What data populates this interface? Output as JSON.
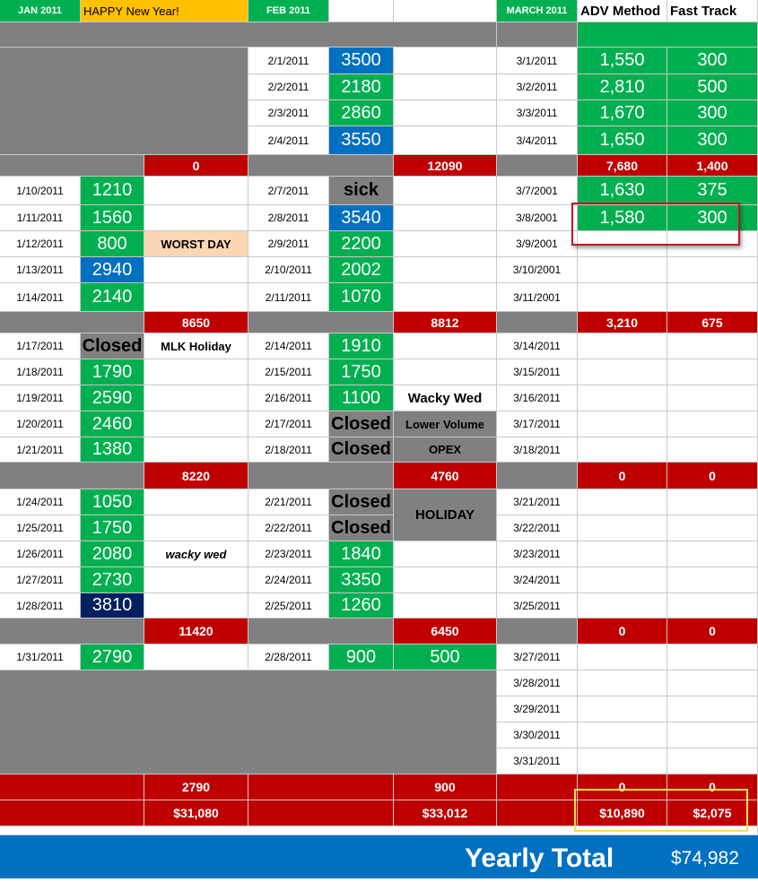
{
  "header": {
    "jan_title": "JAN 2011",
    "jan_note": "HAPPY New Year!",
    "feb_title": "FEB 2011",
    "march_title": "MARCH 2011",
    "adv_method": "ADV Method",
    "fast_track": "Fast Track"
  },
  "jan": {
    "days": [
      {
        "date": "1/10/2011",
        "value": "1210",
        "note": ""
      },
      {
        "date": "1/11/2011",
        "value": "1560",
        "note": ""
      },
      {
        "date": "1/12/2011",
        "value": "800",
        "note": "WORST DAY"
      },
      {
        "date": "1/13/2011",
        "value": "2940",
        "note": ""
      },
      {
        "date": "1/14/2011",
        "value": "2140",
        "note": ""
      },
      {
        "date": "1/17/2011",
        "value": "Closed",
        "note": "MLK Holiday"
      },
      {
        "date": "1/18/2011",
        "value": "1790",
        "note": ""
      },
      {
        "date": "1/19/2011",
        "value": "2590",
        "note": ""
      },
      {
        "date": "1/20/2011",
        "value": "2460",
        "note": ""
      },
      {
        "date": "1/21/2011",
        "value": "1380",
        "note": ""
      },
      {
        "date": "1/24/2011",
        "value": "1050",
        "note": ""
      },
      {
        "date": "1/25/2011",
        "value": "1750",
        "note": ""
      },
      {
        "date": "1/26/2011",
        "value": "2080",
        "note": "wacky wed"
      },
      {
        "date": "1/27/2011",
        "value": "2730",
        "note": ""
      },
      {
        "date": "1/28/2011",
        "value": "3810",
        "note": ""
      },
      {
        "date": "1/31/2011",
        "value": "2790",
        "note": ""
      }
    ],
    "weekly_totals": [
      "0",
      "8650",
      "8220",
      "11420",
      "2790"
    ],
    "month_total": "$31,080"
  },
  "feb": {
    "days": [
      {
        "date": "2/1/2011",
        "value": "3500",
        "note": ""
      },
      {
        "date": "2/2/2011",
        "value": "2180",
        "note": ""
      },
      {
        "date": "2/3/2011",
        "value": "2860",
        "note": ""
      },
      {
        "date": "2/4/2011",
        "value": "3550",
        "note": ""
      },
      {
        "date": "2/7/2011",
        "value": "sick",
        "note": ""
      },
      {
        "date": "2/8/2011",
        "value": "3540",
        "note": ""
      },
      {
        "date": "2/9/2011",
        "value": "2200",
        "note": ""
      },
      {
        "date": "2/10/2011",
        "value": "2002",
        "note": ""
      },
      {
        "date": "2/11/2011",
        "value": "1070",
        "note": ""
      },
      {
        "date": "2/14/2011",
        "value": "1910",
        "note": ""
      },
      {
        "date": "2/15/2011",
        "value": "1750",
        "note": ""
      },
      {
        "date": "2/16/2011",
        "value": "1100",
        "note": "Wacky Wed"
      },
      {
        "date": "2/17/2011",
        "value": "Closed",
        "note": "Lower Volume"
      },
      {
        "date": "2/18/2011",
        "value": "Closed",
        "note": "OPEX"
      },
      {
        "date": "2/21/2011",
        "value": "Closed",
        "note": "HOLIDAY"
      },
      {
        "date": "2/22/2011",
        "value": "Closed",
        "note": ""
      },
      {
        "date": "2/23/2011",
        "value": "1840",
        "note": ""
      },
      {
        "date": "2/24/2011",
        "value": "3350",
        "note": ""
      },
      {
        "date": "2/25/2011",
        "value": "1260",
        "note": ""
      },
      {
        "date": "2/28/2011",
        "value": "900",
        "note": "500"
      }
    ],
    "weekly_totals": [
      "12090",
      "8812",
      "4760",
      "6450",
      "900"
    ],
    "month_total": "$33,012"
  },
  "march": {
    "days": [
      {
        "date": "3/1/2011",
        "adv": "1,550",
        "fast": "300"
      },
      {
        "date": "3/2/2011",
        "adv": "2,810",
        "fast": "500"
      },
      {
        "date": "3/3/2011",
        "adv": "1,670",
        "fast": "300"
      },
      {
        "date": "3/4/2011",
        "adv": "1,650",
        "fast": "300"
      },
      {
        "date": "3/7/2001",
        "adv": "1,630",
        "fast": "375"
      },
      {
        "date": "3/8/2001",
        "adv": "1,580",
        "fast": "300"
      },
      {
        "date": "3/9/2001",
        "adv": "",
        "fast": ""
      },
      {
        "date": "3/10/2001",
        "adv": "",
        "fast": ""
      },
      {
        "date": "3/11/2001",
        "adv": "",
        "fast": ""
      },
      {
        "date": "3/14/2011",
        "adv": "",
        "fast": ""
      },
      {
        "date": "3/15/2011",
        "adv": "",
        "fast": ""
      },
      {
        "date": "3/16/2011",
        "adv": "",
        "fast": ""
      },
      {
        "date": "3/17/2011",
        "adv": "",
        "fast": ""
      },
      {
        "date": "3/18/2011",
        "adv": "",
        "fast": ""
      },
      {
        "date": "3/21/2011",
        "adv": "",
        "fast": ""
      },
      {
        "date": "3/22/2011",
        "adv": "",
        "fast": ""
      },
      {
        "date": "3/23/2011",
        "adv": "",
        "fast": ""
      },
      {
        "date": "3/24/2011",
        "adv": "",
        "fast": ""
      },
      {
        "date": "3/25/2011",
        "adv": "",
        "fast": ""
      },
      {
        "date": "3/27/2011",
        "adv": "",
        "fast": ""
      },
      {
        "date": "3/28/2011",
        "adv": "",
        "fast": ""
      },
      {
        "date": "3/29/2011",
        "adv": "",
        "fast": ""
      },
      {
        "date": "3/30/2011",
        "adv": "",
        "fast": ""
      },
      {
        "date": "3/31/2011",
        "adv": "",
        "fast": ""
      }
    ],
    "weekly_totals_adv": [
      "7,680",
      "3,210",
      "0",
      "0",
      "0"
    ],
    "weekly_totals_fast": [
      "1,400",
      "675",
      "0",
      "0",
      "0"
    ],
    "month_total_adv": "$10,890",
    "month_total_fast": "$2,075"
  },
  "yearly": {
    "label": "Yearly Total",
    "value": "$74,982"
  },
  "colors": {
    "green": "#00b050",
    "blue": "#0070c0",
    "navy": "#002060",
    "red": "#c00000",
    "gray": "#808080",
    "yellow": "#ffc000",
    "peach": "#fcd5b4"
  }
}
